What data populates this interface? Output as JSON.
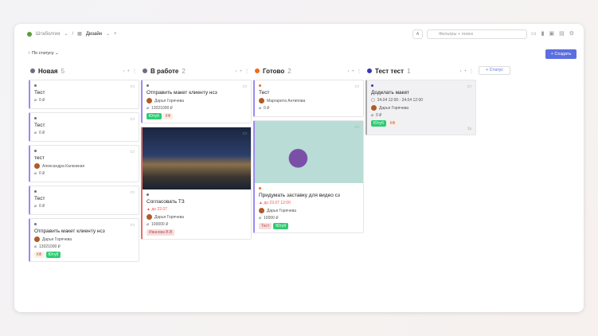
{
  "header": {
    "workspace": "Штаболгия",
    "project": "Дизайн",
    "search_placeholder": "Фильтры + поиск",
    "create_label": "+ Создать",
    "group_by": "По статусу",
    "add_status": "+ Статус"
  },
  "colors": {
    "accent": "#5b6fe0",
    "new": "#6b6f80",
    "in_progress": "#6b6f80",
    "done": "#f06a1c",
    "test": "#3838b0"
  },
  "columns": [
    {
      "title": "Новая",
      "count": "5",
      "cards": [
        {
          "title": "Тест",
          "price": "0 ₽"
        },
        {
          "title": "Тест",
          "price": "0 ₽"
        },
        {
          "title": "тест",
          "assignee": "Александра Калюжная",
          "price": "0 ₽"
        },
        {
          "title": "Тест",
          "price": "0 ₽"
        },
        {
          "title": "Отправить макет клиенту нсз",
          "assignee": "Дарья Горячева",
          "price": "13021000 ₽",
          "tags": [
            "КФ",
            "Ютуб"
          ]
        }
      ]
    },
    {
      "title": "В работе",
      "count": "2",
      "cards": [
        {
          "title": "Отправить макет клиенту нсз",
          "assignee": "Дарья Горячева",
          "price": "13021000 ₽",
          "tags": [
            "Ютуб",
            "КФ"
          ]
        },
        {
          "title": "Согласовать ТЗ",
          "due": "до 22.07",
          "assignee": "Дарья Горячева",
          "price": "100000 ₽",
          "tags": [
            "Иванова В.В"
          ]
        }
      ]
    },
    {
      "title": "Готово",
      "count": "2",
      "cards": [
        {
          "title": "Тест",
          "assignee": "Маргарита Антипова",
          "price": "0 ₽"
        },
        {
          "title": "Придумать заставку для видео сз",
          "due": "до 23.07 12:00",
          "assignee": "Дарья Горячева",
          "price": "10000 ₽",
          "tags": [
            "Тест",
            "Ютуб"
          ]
        }
      ]
    },
    {
      "title": "Тест тест",
      "count": "1",
      "cards": [
        {
          "title": "Доделать макет",
          "dates": "24.04 12:00 - 24.04 12:00",
          "assignee": "Дарья Горячева",
          "price": "0 ₽",
          "tags": [
            "Ютуб",
            "КФ"
          ],
          "footer": "1s"
        }
      ]
    }
  ]
}
